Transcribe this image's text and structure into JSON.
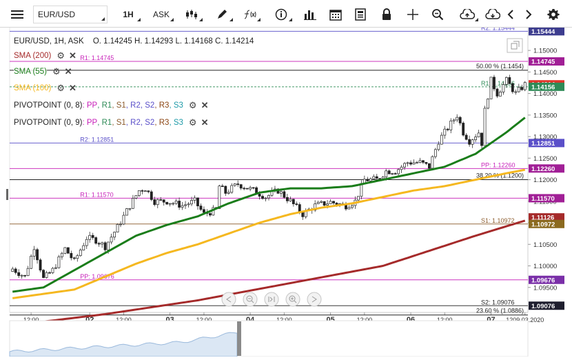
{
  "toolbar": {
    "symbol": "EUR/USD",
    "interval": "1H",
    "price_type": "ASK"
  },
  "chart_data": {
    "type": "candlestick",
    "symbol": "EUR/USD",
    "header": {
      "prefix": "EUR/USD, 1H, ASK",
      "open": "1.14245",
      "high": "1.14293",
      "low": "1.14168",
      "close": "1.14214"
    },
    "ylim": [
      1.0892,
      1.1553
    ],
    "y_ticks": [
      1.095,
      1.1,
      1.105,
      1.11,
      1.115,
      1.12,
      1.125,
      1.13,
      1.135,
      1.14,
      1.145,
      1.15
    ],
    "y_tick_labels": [
      "1.09500",
      "1.10000",
      "1.10500",
      "1.11000",
      "1.11500",
      "1.12000",
      "1.12500",
      "1.13000",
      "1.13500",
      "1.14000",
      "1.14500",
      "1.15000"
    ],
    "x_ticks": [
      {
        "label": "12:00",
        "slot": 6
      },
      {
        "label": "02",
        "slot": 25
      },
      {
        "label": "12:00",
        "slot": 36
      },
      {
        "label": "03",
        "slot": 51
      },
      {
        "label": "12:00",
        "slot": 62
      },
      {
        "label": "04",
        "slot": 77
      },
      {
        "label": "12:00",
        "slot": 88
      },
      {
        "label": "05",
        "slot": 103
      },
      {
        "label": "12:00",
        "slot": 114
      },
      {
        "label": "06",
        "slot": 129
      },
      {
        "label": "12:00",
        "slot": 140
      },
      {
        "label": "07",
        "slot": 155
      },
      {
        "label": "1209.03.2020",
        "slot": 166
      }
    ],
    "candle_count": 167,
    "close_anchors": [
      [
        0,
        1.0993
      ],
      [
        4,
        1.0975
      ],
      [
        7,
        1.1045
      ],
      [
        10,
        1.097
      ],
      [
        13,
        1.099
      ],
      [
        17,
        1.104
      ],
      [
        20,
        1.101
      ],
      [
        24,
        1.1065
      ],
      [
        27,
        1.106
      ],
      [
        30,
        1.1045
      ],
      [
        34,
        1.109
      ],
      [
        38,
        1.114
      ],
      [
        41,
        1.1175
      ],
      [
        43,
        1.118
      ],
      [
        46,
        1.115
      ],
      [
        50,
        1.115
      ],
      [
        55,
        1.114
      ],
      [
        59,
        1.115
      ],
      [
        62,
        1.112
      ],
      [
        66,
        1.113
      ],
      [
        67,
        1.1185
      ],
      [
        69,
        1.117
      ],
      [
        73,
        1.119
      ],
      [
        78,
        1.1175
      ],
      [
        82,
        1.116
      ],
      [
        86,
        1.1175
      ],
      [
        90,
        1.115
      ],
      [
        94,
        1.112
      ],
      [
        98,
        1.114
      ],
      [
        103,
        1.1148
      ],
      [
        108,
        1.114
      ],
      [
        111,
        1.115
      ],
      [
        114,
        1.12
      ],
      [
        118,
        1.12
      ],
      [
        121,
        1.122
      ],
      [
        124,
        1.122
      ],
      [
        128,
        1.124
      ],
      [
        132,
        1.124
      ],
      [
        135,
        1.123
      ],
      [
        138,
        1.129
      ],
      [
        141,
        1.132
      ],
      [
        144,
        1.135
      ],
      [
        146,
        1.131
      ],
      [
        148,
        1.129
      ],
      [
        151,
        1.131
      ],
      [
        152,
        1.1285
      ],
      [
        153,
        1.136
      ],
      [
        155,
        1.143
      ],
      [
        157,
        1.14
      ],
      [
        160,
        1.143
      ],
      [
        163,
        1.14
      ],
      [
        166,
        1.1421
      ]
    ],
    "series": [
      {
        "name": "SMA (200)",
        "color": "#a52a2a",
        "points": [
          [
            0,
            1.0862
          ],
          [
            30,
            1.0888
          ],
          [
            60,
            1.092
          ],
          [
            90,
            1.096
          ],
          [
            120,
            1.1
          ],
          [
            150,
            1.107
          ],
          [
            166,
            1.1105
          ]
        ]
      },
      {
        "name": "SMA (55)",
        "color": "#1a7d1a",
        "points": [
          [
            0,
            1.094
          ],
          [
            10,
            1.095
          ],
          [
            20,
            1.099
          ],
          [
            30,
            1.103
          ],
          [
            40,
            1.107
          ],
          [
            50,
            1.1095
          ],
          [
            60,
            1.1115
          ],
          [
            70,
            1.1145
          ],
          [
            80,
            1.117
          ],
          [
            90,
            1.118
          ],
          [
            100,
            1.118
          ],
          [
            110,
            1.1185
          ],
          [
            120,
            1.12
          ],
          [
            130,
            1.1215
          ],
          [
            140,
            1.123
          ],
          [
            150,
            1.126
          ],
          [
            160,
            1.131
          ],
          [
            166,
            1.1344
          ]
        ]
      },
      {
        "name": "SMA (100)",
        "color": "#f5b820",
        "points": [
          [
            0,
            1.0925
          ],
          [
            20,
            1.0945
          ],
          [
            30,
            1.0975
          ],
          [
            40,
            1.1005
          ],
          [
            50,
            1.103
          ],
          [
            60,
            1.105
          ],
          [
            70,
            1.1075
          ],
          [
            80,
            1.11
          ],
          [
            90,
            1.112
          ],
          [
            100,
            1.1135
          ],
          [
            110,
            1.1145
          ],
          [
            120,
            1.116
          ],
          [
            130,
            1.1175
          ],
          [
            140,
            1.1185
          ],
          [
            150,
            1.12
          ],
          [
            160,
            1.1215
          ],
          [
            166,
            1.1223
          ]
        ]
      }
    ],
    "legend": [
      {
        "label": "SMA (200)",
        "color": "#a52a2a"
      },
      {
        "label": "SMA (55)",
        "color": "#1a7d1a"
      },
      {
        "label": "SMA (100)",
        "color": "#f5b820"
      },
      {
        "label": "PIVOTPOINT (0, 8)",
        "color": "#222222"
      },
      {
        "label": "PIVOTPOINT (0, 9)",
        "color": "#222222"
      }
    ],
    "pivot_legend_parts": [
      {
        "text": ": PP",
        "color": "#c71fb9"
      },
      {
        "text": ", R1",
        "color": "#2e8b57"
      },
      {
        "text": ", S1",
        "color": "#8b5a2b"
      },
      {
        "text": ", R2",
        "color": "#5a4fc9"
      },
      {
        "text": ", S2",
        "color": "#5a4fc9"
      },
      {
        "text": ", R3",
        "color": "#8b4513"
      },
      {
        "text": ", S3",
        "color": "#1e9aa8"
      }
    ],
    "hlines": [
      {
        "label": "R2: 1.15444",
        "y": 1.15444,
        "color": "#5a4fc9",
        "label_slot": 159
      },
      {
        "label": "R1: 1.14745",
        "y": 1.14745,
        "color": "#c71fb9",
        "label_slot": 25
      },
      {
        "label": "R1: 1.14156",
        "y": 1.14156,
        "color": "#2e8b57",
        "label_slot": 159
      },
      {
        "label": "R2: 1.12851",
        "y": 1.12851,
        "color": "#5a4fc9",
        "label_slot": 25
      },
      {
        "label": "PP: 1.12260",
        "y": 1.1226,
        "color": "#c71fb9",
        "label_slot": 159
      },
      {
        "label": "R1: 1.11570",
        "y": 1.1157,
        "color": "#c71fb9",
        "label_slot": 25
      },
      {
        "label": "S1: 1.10972",
        "y": 1.10972,
        "color": "#8b5a2b",
        "label_slot": 159
      },
      {
        "label": "PP: 1.09676",
        "y": 1.09676,
        "color": "#c71fb9",
        "label_slot": 25
      },
      {
        "label": "S2: 1.09076",
        "y": 1.09076,
        "color": "#222222",
        "label_slot": 159
      }
    ],
    "fib_lines": [
      {
        "label": "50.00 % (1.1454)",
        "y": 1.1454
      },
      {
        "label": "38.20 % (1.1200)",
        "y": 1.12
      },
      {
        "label": "23.60 % (1.0886)",
        "y": 1.0886
      }
    ],
    "price_badges": [
      {
        "text": "1.15444",
        "y": 1.15444,
        "bg": "#3d3d8f"
      },
      {
        "text": "1.14745",
        "y": 1.14745,
        "bg": "#a11f96"
      },
      {
        "text": "1.14214",
        "y": 1.14214,
        "bg": "#e0352b"
      },
      {
        "text": "1.14156",
        "y": 1.14156,
        "bg": "#2e8b57"
      },
      {
        "text": "1.12851",
        "y": 1.12851,
        "bg": "#5a4fc9"
      },
      {
        "text": "1.12260",
        "y": 1.1226,
        "bg": "#a11f96"
      },
      {
        "text": "1.11570",
        "y": 1.1157,
        "bg": "#a11f96"
      },
      {
        "text": "1.11126",
        "y": 1.11126,
        "bg": "#a52a2a"
      },
      {
        "text": "1.10972",
        "y": 1.10972,
        "bg": "#8b6a1f"
      },
      {
        "text": "1.09676",
        "y": 1.09676,
        "bg": "#7a2fa8"
      },
      {
        "text": "1.09076",
        "y": 1.09076,
        "bg": "#1e1e2e"
      }
    ]
  }
}
